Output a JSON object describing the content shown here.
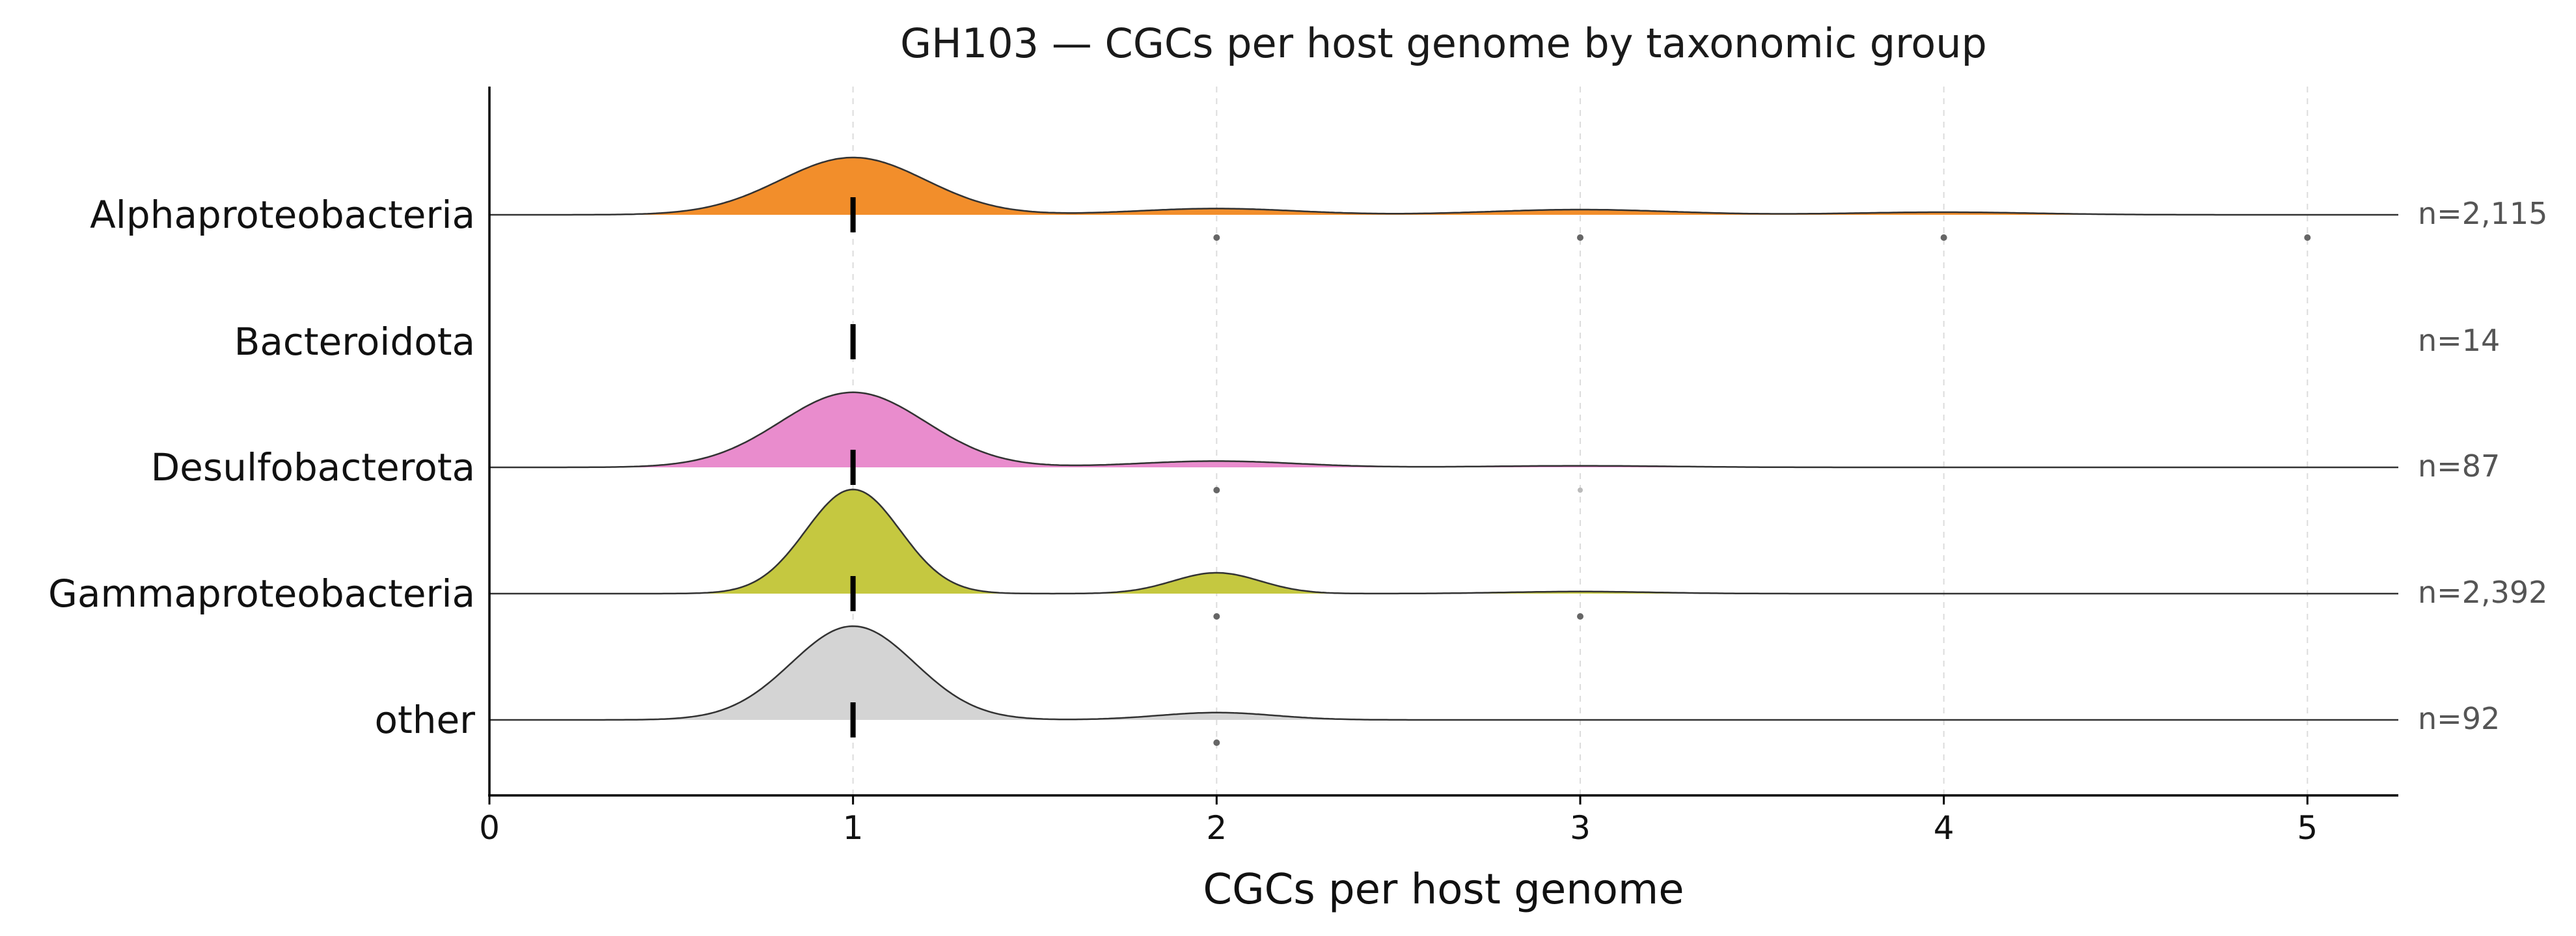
{
  "chart_data": {
    "type": "ridgeline",
    "title": "GH103 — CGCs per host genome by taxonomic group",
    "xlabel": "CGCs per host genome",
    "ylabel": "",
    "xlim": [
      0,
      5.25
    ],
    "xticks": [
      0,
      1,
      2,
      3,
      4,
      5
    ],
    "xtick_labels": [
      "0",
      "1",
      "2",
      "3",
      "4",
      "5"
    ],
    "grid": "x-dashed",
    "median_marker": "vertical tick",
    "series": [
      {
        "name": "Alphaproteobacteria",
        "n_label": "n=2,115",
        "color": "#f28e2b",
        "median": 1,
        "peaks": [
          {
            "x": 1,
            "height": 0.55,
            "width": 0.2
          },
          {
            "x": 2,
            "height": 0.06,
            "width": 0.22
          },
          {
            "x": 3,
            "height": 0.05,
            "width": 0.25
          },
          {
            "x": 4,
            "height": 0.025,
            "width": 0.25
          }
        ],
        "outliers": [
          2,
          3,
          4,
          5
        ],
        "outlier_faint": []
      },
      {
        "name": "Bacteroidota",
        "n_label": "n=14",
        "color": "#9c755f",
        "median": 1,
        "peaks": [],
        "outliers": [],
        "outlier_faint": []
      },
      {
        "name": "Desulfobacterota",
        "n_label": "n=87",
        "color": "#e98ccd",
        "median": 1,
        "peaks": [
          {
            "x": 1,
            "height": 0.72,
            "width": 0.2
          },
          {
            "x": 2,
            "height": 0.06,
            "width": 0.22
          },
          {
            "x": 3,
            "height": 0.015,
            "width": 0.25
          }
        ],
        "outliers": [
          2
        ],
        "outlier_faint": [
          3
        ]
      },
      {
        "name": "Gammaproteobacteria",
        "n_label": "n=2,392",
        "color": "#c5c840",
        "median": 1,
        "peaks": [
          {
            "x": 1,
            "height": 1.0,
            "width": 0.13
          },
          {
            "x": 2,
            "height": 0.2,
            "width": 0.12
          },
          {
            "x": 3,
            "height": 0.02,
            "width": 0.2
          }
        ],
        "outliers": [
          2,
          3
        ],
        "outlier_faint": []
      },
      {
        "name": "other",
        "n_label": "n=92",
        "color": "#d4d4d4",
        "median": 1,
        "peaks": [
          {
            "x": 1,
            "height": 0.9,
            "width": 0.17
          },
          {
            "x": 2,
            "height": 0.07,
            "width": 0.16
          }
        ],
        "outliers": [
          2
        ],
        "outlier_faint": []
      }
    ]
  }
}
